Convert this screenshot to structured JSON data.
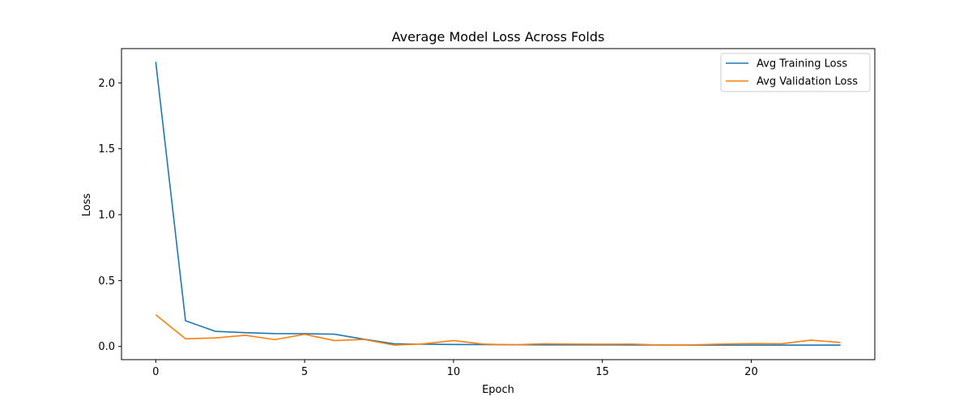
{
  "chart_data": {
    "type": "line",
    "title": "Average Model Loss Across Folds",
    "xlabel": "Epoch",
    "ylabel": "Loss",
    "xlim": [
      -1.15,
      24.15
    ],
    "ylim": [
      -0.1,
      2.26
    ],
    "xticks": [
      0,
      5,
      10,
      15,
      20
    ],
    "xtick_labels": [
      "0",
      "5",
      "10",
      "15",
      "20"
    ],
    "yticks": [
      0.0,
      0.5,
      1.0,
      1.5,
      2.0
    ],
    "ytick_labels": [
      "0.0",
      "0.5",
      "1.0",
      "1.5",
      "2.0"
    ],
    "grid": false,
    "legend_position": "top-right",
    "x": [
      0,
      1,
      2,
      3,
      4,
      5,
      6,
      7,
      8,
      9,
      10,
      11,
      12,
      13,
      14,
      15,
      16,
      17,
      18,
      19,
      20,
      21,
      22,
      23
    ],
    "series": [
      {
        "name": "Avg Training Loss",
        "color": "#1f77b4",
        "values": [
          2.16,
          0.195,
          0.115,
          0.105,
          0.098,
          0.097,
          0.093,
          0.055,
          0.02,
          0.017,
          0.015,
          0.014,
          0.013,
          0.012,
          0.012,
          0.012,
          0.011,
          0.011,
          0.01,
          0.01,
          0.01,
          0.01,
          0.01,
          0.01
        ]
      },
      {
        "name": "Avg Validation Loss",
        "color": "#ff7f0e",
        "values": [
          0.24,
          0.058,
          0.065,
          0.085,
          0.052,
          0.092,
          0.045,
          0.053,
          0.01,
          0.02,
          0.045,
          0.018,
          0.012,
          0.02,
          0.018,
          0.017,
          0.018,
          0.01,
          0.012,
          0.018,
          0.022,
          0.02,
          0.048,
          0.03
        ]
      }
    ]
  }
}
